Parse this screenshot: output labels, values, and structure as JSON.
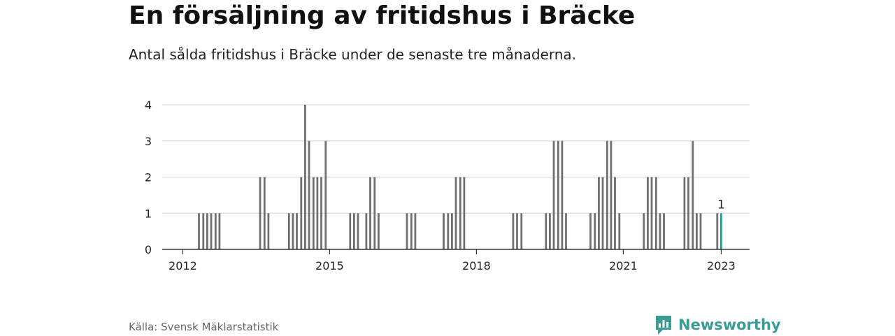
{
  "header": {
    "title": "En försäljning av fritidshus i Bräcke",
    "subtitle": "Antal sålda fritidshus i Bräcke under de senaste tre månaderna."
  },
  "footer": {
    "source": "Källa: Svensk Mäklarstatistik",
    "brand": "Newsworthy"
  },
  "colors": {
    "bar": "#707070",
    "highlight": "#2a9d8f",
    "grid": "#d9d9d9",
    "axis": "#333333",
    "brand": "#3a9c95"
  },
  "icons": {
    "brand_logo": "newsworthy-logo-icon"
  },
  "chart_data": {
    "type": "bar",
    "title": "En försäljning av fritidshus i Bräcke",
    "subtitle": "Antal sålda fritidshus i Bräcke under de senaste tre månaderna.",
    "xlabel": "",
    "ylabel": "",
    "x_tick_labels": [
      "2012",
      "2015",
      "2018",
      "2021",
      "2023"
    ],
    "x_tick_positions": [
      2012,
      2015,
      2018,
      2021,
      2023
    ],
    "yticks": [
      0,
      1,
      2,
      3,
      4
    ],
    "ylim": [
      0,
      4
    ],
    "xlim": [
      2011.58,
      2023.58
    ],
    "grid": true,
    "legend": "none",
    "data_label": "1",
    "series": [
      {
        "values": [
          {
            "x": 2012.33,
            "y": 1
          },
          {
            "x": 2012.42,
            "y": 1
          },
          {
            "x": 2012.5,
            "y": 1
          },
          {
            "x": 2012.58,
            "y": 1
          },
          {
            "x": 2012.67,
            "y": 1
          },
          {
            "x": 2012.75,
            "y": 1
          },
          {
            "x": 2013.58,
            "y": 2
          },
          {
            "x": 2013.67,
            "y": 2
          },
          {
            "x": 2013.75,
            "y": 1
          },
          {
            "x": 2014.17,
            "y": 1
          },
          {
            "x": 2014.25,
            "y": 1
          },
          {
            "x": 2014.33,
            "y": 1
          },
          {
            "x": 2014.42,
            "y": 2
          },
          {
            "x": 2014.5,
            "y": 4
          },
          {
            "x": 2014.58,
            "y": 3
          },
          {
            "x": 2014.67,
            "y": 2
          },
          {
            "x": 2014.75,
            "y": 2
          },
          {
            "x": 2014.83,
            "y": 2
          },
          {
            "x": 2014.92,
            "y": 3
          },
          {
            "x": 2015.42,
            "y": 1
          },
          {
            "x": 2015.5,
            "y": 1
          },
          {
            "x": 2015.58,
            "y": 1
          },
          {
            "x": 2015.75,
            "y": 1
          },
          {
            "x": 2015.83,
            "y": 2
          },
          {
            "x": 2015.92,
            "y": 2
          },
          {
            "x": 2016.0,
            "y": 1
          },
          {
            "x": 2016.58,
            "y": 1
          },
          {
            "x": 2016.67,
            "y": 1
          },
          {
            "x": 2016.75,
            "y": 1
          },
          {
            "x": 2017.33,
            "y": 1
          },
          {
            "x": 2017.42,
            "y": 1
          },
          {
            "x": 2017.5,
            "y": 1
          },
          {
            "x": 2017.58,
            "y": 2
          },
          {
            "x": 2017.67,
            "y": 2
          },
          {
            "x": 2017.75,
            "y": 2
          },
          {
            "x": 2018.75,
            "y": 1
          },
          {
            "x": 2018.83,
            "y": 1
          },
          {
            "x": 2018.92,
            "y": 1
          },
          {
            "x": 2019.42,
            "y": 1
          },
          {
            "x": 2019.5,
            "y": 1
          },
          {
            "x": 2019.58,
            "y": 3
          },
          {
            "x": 2019.67,
            "y": 3
          },
          {
            "x": 2019.75,
            "y": 3
          },
          {
            "x": 2019.83,
            "y": 1
          },
          {
            "x": 2020.33,
            "y": 1
          },
          {
            "x": 2020.42,
            "y": 1
          },
          {
            "x": 2020.5,
            "y": 2
          },
          {
            "x": 2020.58,
            "y": 2
          },
          {
            "x": 2020.67,
            "y": 3
          },
          {
            "x": 2020.75,
            "y": 3
          },
          {
            "x": 2020.83,
            "y": 2
          },
          {
            "x": 2020.92,
            "y": 1
          },
          {
            "x": 2021.42,
            "y": 1
          },
          {
            "x": 2021.5,
            "y": 2
          },
          {
            "x": 2021.58,
            "y": 2
          },
          {
            "x": 2021.67,
            "y": 2
          },
          {
            "x": 2021.75,
            "y": 1
          },
          {
            "x": 2021.83,
            "y": 1
          },
          {
            "x": 2022.25,
            "y": 2
          },
          {
            "x": 2022.33,
            "y": 2
          },
          {
            "x": 2022.42,
            "y": 3
          },
          {
            "x": 2022.5,
            "y": 1
          },
          {
            "x": 2022.58,
            "y": 1
          },
          {
            "x": 2022.92,
            "y": 1
          },
          {
            "x": 2023.0,
            "y": 1,
            "highlight": true
          }
        ]
      }
    ]
  }
}
